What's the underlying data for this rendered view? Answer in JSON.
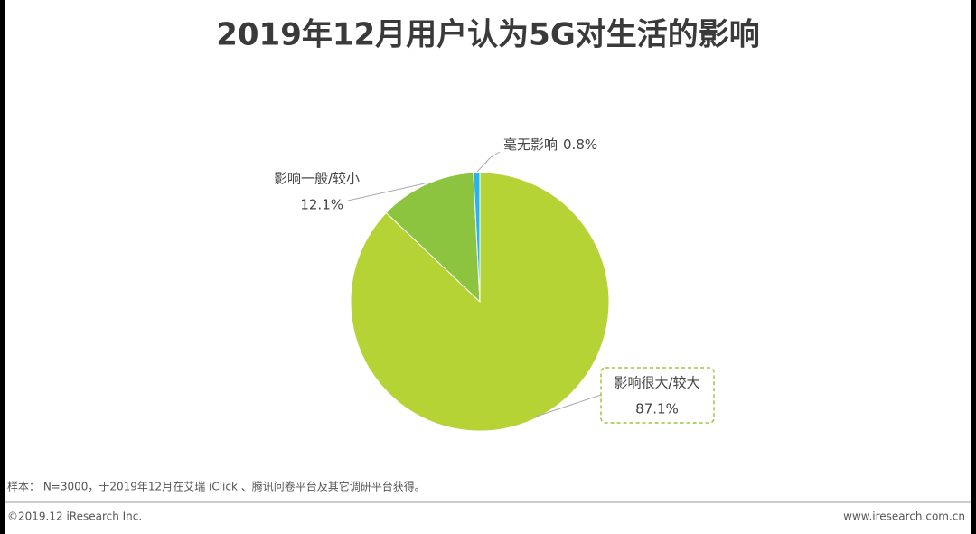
{
  "chart_data": {
    "type": "pie",
    "title": "2019年12月用户认为5G对生活的影响",
    "categories": [
      "影响很大/较大",
      "影响一般/较小",
      "毫无影响"
    ],
    "values": [
      87.1,
      12.1,
      0.8
    ],
    "value_labels": [
      "87.1%",
      "12.1%",
      "0.8%"
    ],
    "colors": [
      "#b5d335",
      "#8cc43f",
      "#2bb5e6"
    ]
  },
  "footer": {
    "source": "样本： N=3000，于2019年12月在艾瑞 iClick 、腾讯问卷平台及其它调研平台获得。",
    "copyright": "©2019.12 iResearch Inc.",
    "website": "www.iresearch.com.cn"
  }
}
